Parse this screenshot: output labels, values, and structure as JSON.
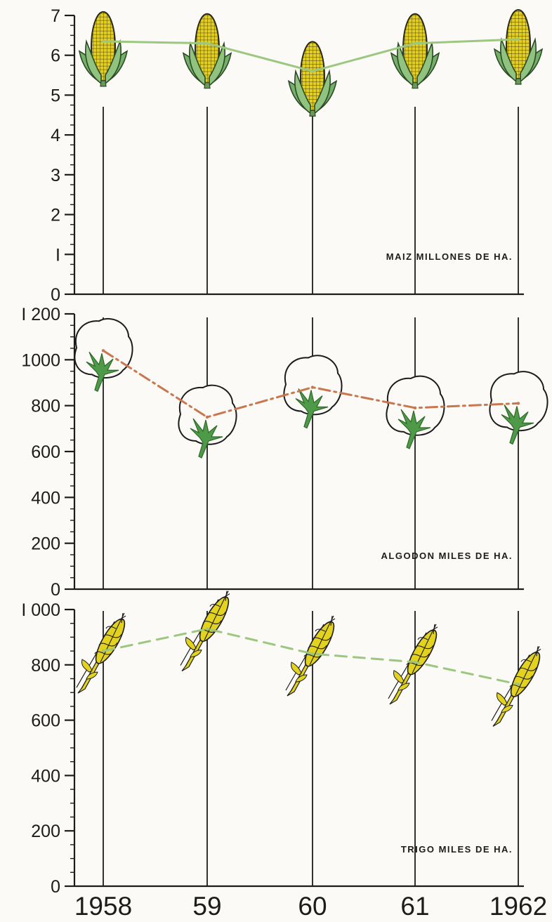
{
  "chart_data": {
    "type": "line",
    "categories": [
      "1958",
      "59",
      "60",
      "61",
      "1962"
    ],
    "panels": [
      {
        "id": "maiz",
        "label": "MAIZ  MILLONES DE HA.",
        "yticks": [
          "0",
          "I",
          "2",
          "3",
          "4",
          "5",
          "6",
          "7"
        ],
        "ylim": [
          0,
          7
        ],
        "values": [
          6.35,
          6.3,
          5.6,
          6.3,
          6.4
        ],
        "line_color": "#9cc77e",
        "line_style": "solid",
        "icon": "corn-cob-icon"
      },
      {
        "id": "algodon",
        "label": "ALGODON MILES DE HA.",
        "yticks": [
          "0",
          "200",
          "400",
          "600",
          "800",
          "1000",
          "I 200"
        ],
        "ylim": [
          0,
          1200
        ],
        "values": [
          1040,
          750,
          880,
          790,
          810
        ],
        "line_color": "#c9774e",
        "line_style": "dash-dot",
        "icon": "cotton-boll-icon"
      },
      {
        "id": "trigo",
        "label": "TRIGO  MILES DE HA.",
        "yticks": [
          "0",
          "200",
          "400",
          "600",
          "800",
          "I 000"
        ],
        "ylim": [
          0,
          1000
        ],
        "values": [
          850,
          930,
          840,
          810,
          730
        ],
        "line_color": "#9cc77e",
        "line_style": "dashed",
        "icon": "wheat-ear-icon"
      }
    ],
    "grid": "vertical lines at each year"
  }
}
